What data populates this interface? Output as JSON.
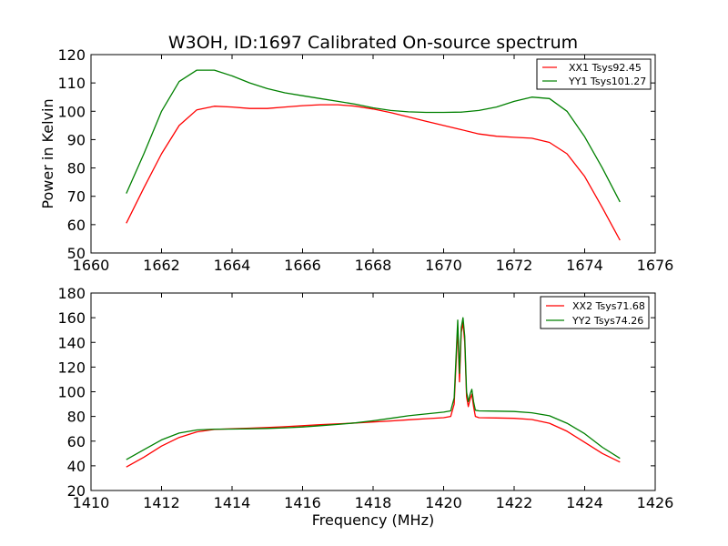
{
  "colors": {
    "xx": "#ff0000",
    "yy": "#008000",
    "axes": "#000000",
    "background": "#ffffff"
  },
  "chart_data": [
    {
      "type": "line",
      "title": "W3OH, ID:1697 Calibrated On-source spectrum",
      "xlabel": "",
      "ylabel": "Power in Kelvin",
      "xlim": [
        1660,
        1676
      ],
      "ylim": [
        50,
        120
      ],
      "xticks": [
        "1660",
        "1662",
        "1664",
        "1666",
        "1668",
        "1670",
        "1672",
        "1674",
        "1676"
      ],
      "yticks": [
        "50",
        "60",
        "70",
        "80",
        "90",
        "100",
        "110",
        "120"
      ],
      "grid": false,
      "legend_position": "top-right",
      "series": [
        {
          "name": "XX1 Tsys92.45",
          "color_key": "xx",
          "x": [
            1661.0,
            1661.5,
            1662.0,
            1662.5,
            1663.0,
            1663.5,
            1664.0,
            1664.5,
            1665.0,
            1665.5,
            1666.0,
            1666.5,
            1667.0,
            1667.5,
            1668.0,
            1668.5,
            1669.0,
            1669.5,
            1670.0,
            1670.5,
            1671.0,
            1671.5,
            1672.0,
            1672.5,
            1673.0,
            1673.5,
            1674.0,
            1674.5,
            1675.0
          ],
          "y": [
            60.5,
            73,
            85,
            95,
            100.5,
            101.8,
            101.5,
            101,
            101,
            101.5,
            102,
            102.3,
            102.3,
            101.8,
            100.8,
            99.5,
            98,
            96.5,
            95,
            93.5,
            92,
            91.2,
            90.8,
            90.5,
            89,
            85,
            77,
            66,
            54.5
          ]
        },
        {
          "name": "YY1 Tsys101.27",
          "color_key": "yy",
          "x": [
            1661.0,
            1661.5,
            1662.0,
            1662.5,
            1663.0,
            1663.5,
            1664.0,
            1664.5,
            1665.0,
            1665.5,
            1666.0,
            1666.5,
            1667.0,
            1667.5,
            1668.0,
            1668.5,
            1669.0,
            1669.5,
            1670.0,
            1670.5,
            1671.0,
            1671.5,
            1672.0,
            1672.5,
            1673.0,
            1673.5,
            1674.0,
            1674.5,
            1675.0
          ],
          "y": [
            71,
            85,
            100,
            110.5,
            114.5,
            114.5,
            112.5,
            110,
            108,
            106.5,
            105.5,
            104.5,
            103.5,
            102.5,
            101.2,
            100.3,
            99.8,
            99.6,
            99.6,
            99.7,
            100.3,
            101.5,
            103.5,
            105,
            104.5,
            100,
            91,
            80,
            68
          ]
        }
      ]
    },
    {
      "type": "line",
      "title": "",
      "xlabel": "Frequency (MHz)",
      "ylabel": "",
      "xlim": [
        1410,
        1426
      ],
      "ylim": [
        20,
        180
      ],
      "xticks": [
        "1410",
        "1412",
        "1414",
        "1416",
        "1418",
        "1420",
        "1422",
        "1424",
        "1426"
      ],
      "yticks": [
        "20",
        "40",
        "60",
        "80",
        "100",
        "120",
        "140",
        "160",
        "180"
      ],
      "grid": false,
      "legend_position": "top-right",
      "series": [
        {
          "name": "XX2 Tsys71.68",
          "color_key": "xx",
          "x": [
            1411.0,
            1411.5,
            1412.0,
            1412.5,
            1413.0,
            1413.5,
            1414.0,
            1414.5,
            1415.0,
            1415.5,
            1416.0,
            1416.5,
            1417.0,
            1417.5,
            1418.0,
            1418.5,
            1419.0,
            1419.5,
            1420.0,
            1420.2,
            1420.3,
            1420.4,
            1420.45,
            1420.5,
            1420.55,
            1420.6,
            1420.65,
            1420.7,
            1420.75,
            1420.8,
            1420.85,
            1420.9,
            1421.0,
            1421.5,
            1422.0,
            1422.5,
            1423.0,
            1423.5,
            1424.0,
            1424.5,
            1425.0
          ],
          "y": [
            39,
            47,
            56,
            63,
            67.5,
            69.5,
            70,
            70.5,
            71,
            71.7,
            72.5,
            73.3,
            74,
            74.7,
            75.5,
            76.3,
            77.3,
            78.2,
            79,
            80,
            90,
            152,
            108,
            148,
            156,
            140,
            96,
            88,
            94,
            98,
            88,
            80,
            79,
            78.8,
            78.5,
            77.5,
            74.5,
            68,
            59,
            50,
            43
          ]
        },
        {
          "name": "YY2 Tsys74.26",
          "color_key": "yy",
          "x": [
            1411.0,
            1411.5,
            1412.0,
            1412.5,
            1413.0,
            1413.5,
            1414.0,
            1414.5,
            1415.0,
            1415.5,
            1416.0,
            1416.5,
            1417.0,
            1417.5,
            1418.0,
            1418.5,
            1419.0,
            1419.5,
            1420.0,
            1420.2,
            1420.3,
            1420.4,
            1420.45,
            1420.5,
            1420.55,
            1420.6,
            1420.65,
            1420.7,
            1420.75,
            1420.8,
            1420.85,
            1420.9,
            1421.0,
            1421.5,
            1422.0,
            1422.5,
            1423.0,
            1423.5,
            1424.0,
            1424.5,
            1425.0
          ],
          "y": [
            45,
            53,
            61,
            66.5,
            69,
            69.7,
            69.8,
            70,
            70.3,
            70.8,
            71.5,
            72.5,
            73.5,
            74.8,
            76.5,
            78.5,
            80.5,
            82,
            83.5,
            84.5,
            95,
            158,
            115,
            152,
            160,
            145,
            100,
            92,
            98,
            102,
            92,
            85,
            84.5,
            84.3,
            84,
            83,
            80.5,
            74.5,
            66,
            55,
            46
          ]
        }
      ]
    }
  ]
}
